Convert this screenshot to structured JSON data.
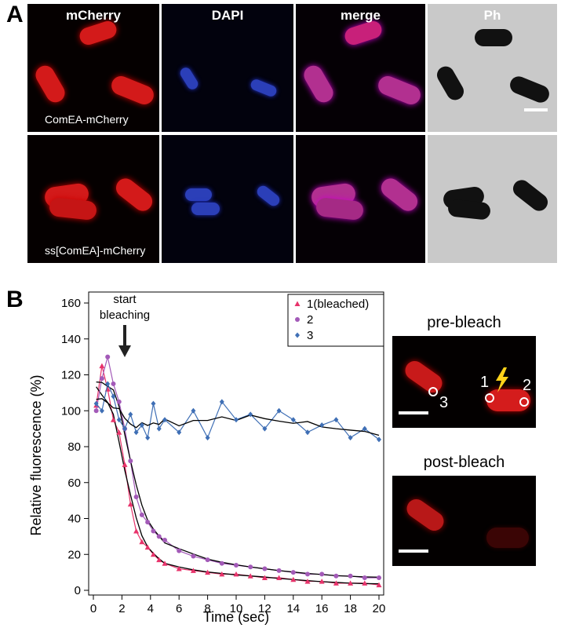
{
  "panel_a": {
    "letter": "A",
    "column_titles": [
      "mCherry",
      "DAPI",
      "merge",
      "Ph"
    ],
    "row_labels": [
      "ComEA-mCherry",
      "ss[ComEA]-mCherry"
    ]
  },
  "panel_b": {
    "letter": "B",
    "annotation": [
      "start",
      "bleaching"
    ],
    "pre_bleach": {
      "title": "pre-bleach",
      "labels": [
        "1",
        "2",
        "3"
      ]
    },
    "post_bleach": {
      "title": "post-bleach"
    }
  },
  "colors": {
    "series1": "#e8336b",
    "series2": "#a35ab8",
    "series3": "#3f6fb5",
    "smooth": "#000000"
  },
  "chart_data": {
    "type": "line",
    "xlabel": "Time (sec)",
    "ylabel": "Relative fluorescence (%)",
    "xlim": [
      0,
      20
    ],
    "ylim": [
      0,
      160
    ],
    "xticks": [
      0,
      2,
      4,
      6,
      8,
      10,
      12,
      14,
      16,
      18,
      20
    ],
    "yticks": [
      0,
      20,
      40,
      60,
      80,
      100,
      120,
      140,
      160
    ],
    "legend": [
      "1(bleached)",
      "2",
      "3"
    ],
    "legend_position": "top-right",
    "series": [
      {
        "name": "1(bleached)",
        "marker": "triangle",
        "x": [
          0.2,
          0.6,
          1.0,
          1.4,
          1.8,
          2.2,
          2.6,
          3.0,
          3.4,
          3.8,
          4.2,
          4.6,
          5.0,
          6.0,
          7.0,
          8.0,
          9.0,
          10.0,
          11.0,
          12.0,
          13.0,
          14.0,
          15.0,
          16.0,
          17.0,
          18.0,
          19.0,
          20.0
        ],
        "y": [
          103,
          125,
          112,
          95,
          88,
          70,
          48,
          33,
          27,
          24,
          20,
          17,
          15,
          12,
          11,
          10,
          9,
          9,
          8,
          7,
          7,
          6,
          5,
          5,
          4,
          4,
          4,
          3
        ]
      },
      {
        "name": "2",
        "marker": "circle",
        "x": [
          0.2,
          0.6,
          1.0,
          1.4,
          1.8,
          2.2,
          2.6,
          3.0,
          3.4,
          3.8,
          4.2,
          4.6,
          5.0,
          6.0,
          7.0,
          8.0,
          9.0,
          10.0,
          11.0,
          12.0,
          13.0,
          14.0,
          15.0,
          16.0,
          17.0,
          18.0,
          19.0,
          20.0
        ],
        "y": [
          100,
          118,
          130,
          115,
          105,
          90,
          72,
          52,
          42,
          38,
          33,
          30,
          28,
          22,
          19,
          17,
          15,
          14,
          13,
          12,
          11,
          10,
          9,
          9,
          8,
          8,
          7,
          7
        ]
      },
      {
        "name": "3",
        "marker": "diamond",
        "x": [
          0.2,
          0.6,
          1.0,
          1.4,
          1.8,
          2.2,
          2.6,
          3.0,
          3.4,
          3.8,
          4.2,
          4.6,
          5.0,
          6.0,
          7.0,
          8.0,
          9.0,
          10.0,
          11.0,
          12.0,
          13.0,
          14.0,
          15.0,
          16.0,
          17.0,
          18.0,
          19.0,
          20.0
        ],
        "y": [
          104,
          100,
          115,
          108,
          95,
          90,
          98,
          88,
          92,
          85,
          104,
          90,
          95,
          88,
          100,
          85,
          105,
          95,
          98,
          90,
          100,
          95,
          88,
          92,
          95,
          85,
          90,
          84
        ]
      }
    ]
  }
}
